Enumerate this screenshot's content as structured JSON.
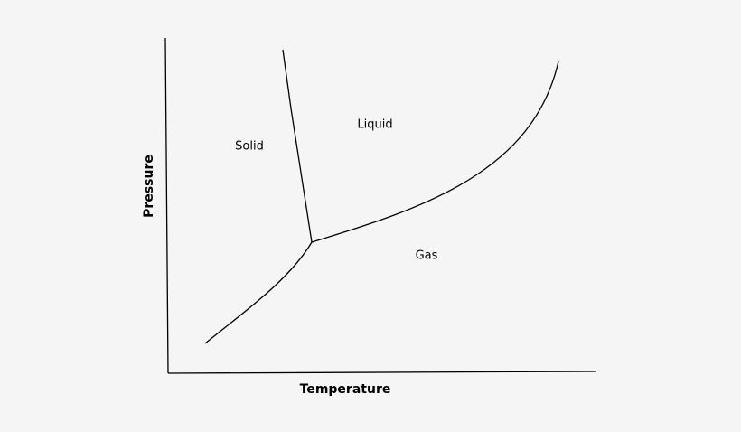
{
  "diagram": {
    "x_axis_label": "Temperature",
    "y_axis_label": "Pressure",
    "regions": [
      {
        "label": "Solid"
      },
      {
        "label": "Liquid"
      },
      {
        "label": "Gas"
      }
    ]
  }
}
